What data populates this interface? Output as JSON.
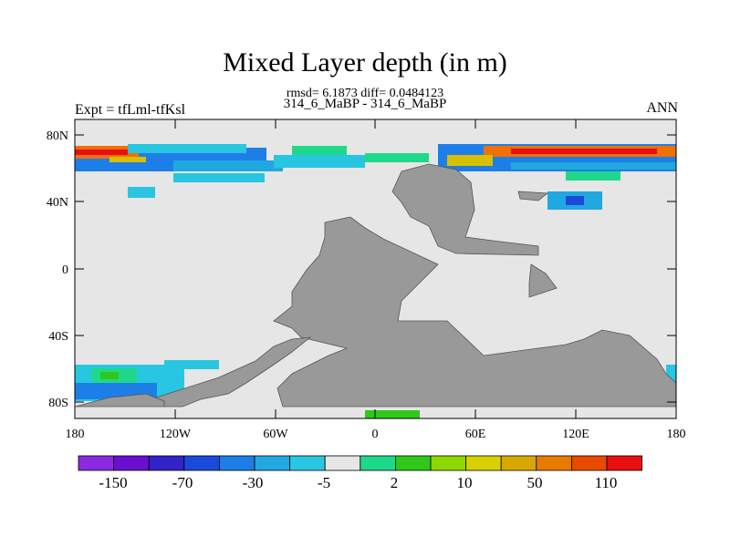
{
  "title": "Mixed Layer depth (in m)",
  "stats": "rmsd= 6.1873 diff= 0.0484123",
  "case_label": "314_6_MaBP - 314_6_MaBP",
  "expt_label": "Expt = tfLml-tfKsl",
  "season_label": "ANN",
  "map": {
    "lat_ticks": [
      "80N",
      "40N",
      "0",
      "40S",
      "80S"
    ],
    "lon_ticks": [
      "180",
      "120W",
      "60W",
      "0",
      "60E",
      "120E",
      "180"
    ],
    "land_color": "#999999",
    "ocean_background": "#e6e6e6"
  },
  "colorbar": {
    "labels": [
      "-150",
      "-70",
      "-30",
      "-5",
      "2",
      "10",
      "50",
      "110"
    ],
    "colors": [
      "#8a2be2",
      "#6a0fd0",
      "#3322c8",
      "#1a4bd8",
      "#1e7ee8",
      "#22a8e0",
      "#28c6e0",
      "#e6e6e6",
      "#1fd88a",
      "#2fc81a",
      "#8ed800",
      "#d8d000",
      "#d8a800",
      "#e87a00",
      "#e84a00",
      "#e61010"
    ]
  }
}
